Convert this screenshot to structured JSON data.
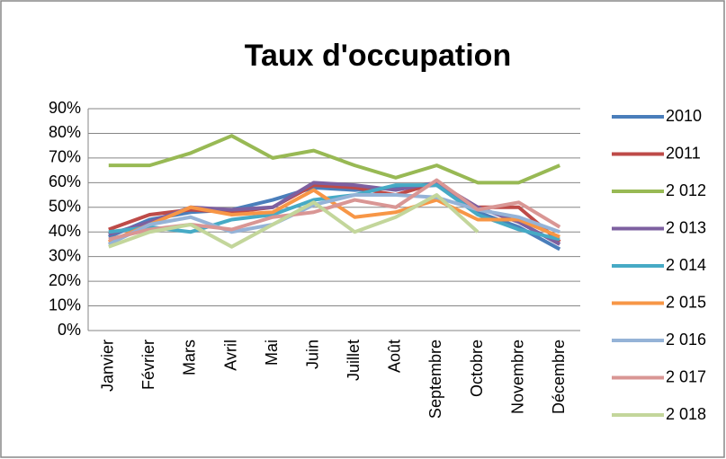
{
  "chart_data": {
    "type": "line",
    "title": "Taux d'occupation",
    "categories": [
      "Janvier",
      "Février",
      "Mars",
      "Avril",
      "Mai",
      "Juin",
      "Juillet",
      "Août",
      "Septembre",
      "Octobre",
      "Novembre",
      "Décembre"
    ],
    "series": [
      {
        "name": "2010",
        "color": "#4a7ebb",
        "values": [
          38,
          45,
          48,
          49,
          53,
          58,
          57,
          58,
          59,
          48,
          42,
          33
        ]
      },
      {
        "name": "2011",
        "color": "#be4b48",
        "values": [
          41,
          47,
          49,
          48,
          50,
          59,
          58,
          55,
          60,
          50,
          50,
          36
        ]
      },
      {
        "name": "2 012",
        "color": "#98b954",
        "values": [
          67,
          67,
          72,
          79,
          70,
          73,
          67,
          62,
          67,
          60,
          60,
          67
        ]
      },
      {
        "name": "2 013",
        "color": "#7d60a0",
        "values": [
          39,
          44,
          50,
          49,
          50,
          60,
          59,
          57,
          60,
          50,
          44,
          35
        ]
      },
      {
        "name": "2 014",
        "color": "#46aac5",
        "values": [
          40,
          42,
          40,
          45,
          47,
          53,
          55,
          59,
          59,
          47,
          41,
          37
        ]
      },
      {
        "name": "2 015",
        "color": "#f79646",
        "values": [
          36,
          43,
          50,
          47,
          48,
          57,
          46,
          48,
          53,
          45,
          45,
          38
        ]
      },
      {
        "name": "2 016",
        "color": "#95b3d7",
        "values": [
          35,
          43,
          46,
          40,
          43,
          51,
          55,
          55,
          54,
          49,
          46,
          40
        ]
      },
      {
        "name": "2 017",
        "color": "#d99694",
        "values": [
          37,
          41,
          43,
          41,
          46,
          48,
          53,
          50,
          61,
          49,
          52,
          42
        ]
      },
      {
        "name": "2 018",
        "color": "#c3d69b",
        "values": [
          34,
          40,
          43,
          34,
          43,
          52,
          40,
          46,
          55,
          40,
          null,
          null
        ]
      }
    ],
    "ylim": [
      0,
      90
    ],
    "yticks": [
      {
        "value": 0,
        "label": "0%"
      },
      {
        "value": 10,
        "label": "10%"
      },
      {
        "value": 20,
        "label": "20%"
      },
      {
        "value": 30,
        "label": "30%"
      },
      {
        "value": 40,
        "label": "40%"
      },
      {
        "value": 50,
        "label": "50%"
      },
      {
        "value": 60,
        "label": "60%"
      },
      {
        "value": 70,
        "label": "70%"
      },
      {
        "value": 80,
        "label": "80%"
      },
      {
        "value": 90,
        "label": "90%"
      }
    ],
    "grid": true,
    "legend": "right"
  }
}
